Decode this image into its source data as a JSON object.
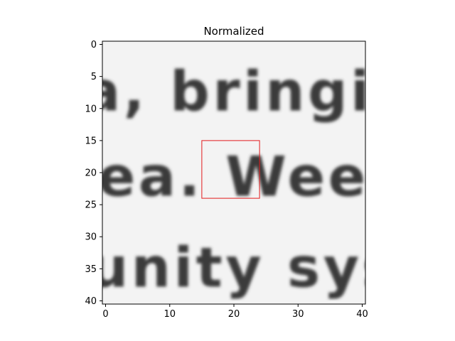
{
  "chart_data": {
    "type": "heatmap",
    "title": "Normalized",
    "xlabel": "",
    "ylabel": "",
    "colormap": "gray",
    "y_axis_inverted": true,
    "xlim": [
      -0.5,
      40.5
    ],
    "ylim": [
      40.5,
      -0.5
    ],
    "xticks": [
      0,
      10,
      20,
      30,
      40
    ],
    "yticks": [
      0,
      5,
      10,
      15,
      20,
      25,
      30,
      35,
      40
    ],
    "grid": false,
    "image_content": "Grayscale text crop showing three lines of text: 'a, bringin' / 'ea. Weeks' / 'unity sys'",
    "highlight_box": {
      "x0": 15,
      "y0": 15,
      "x1": 24,
      "y1": 24,
      "color": "#e31a1c"
    },
    "text_lines": [
      "a, bringin",
      "ea. Weeks",
      "unity sys"
    ]
  }
}
